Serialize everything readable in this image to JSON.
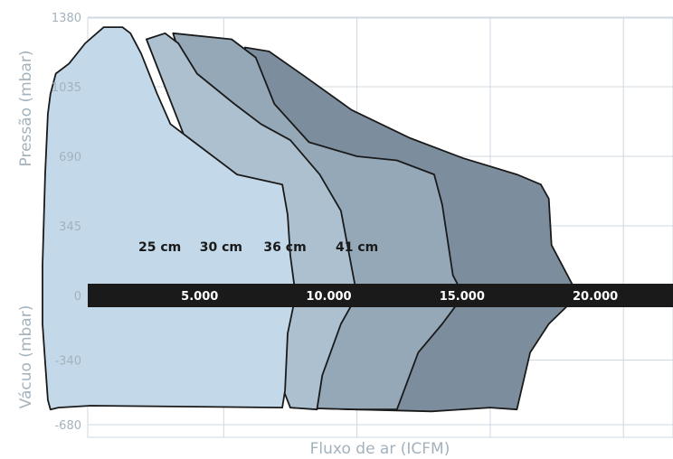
{
  "chart_data": {
    "type": "area",
    "xlabel": "Fluxo de ar (ICFM)",
    "ylabel_top": "Pressão  (mbar)",
    "ylabel_bottom": "Vácuo (mbar)",
    "x_ticks": [
      {
        "value": 5000,
        "label": "5.000"
      },
      {
        "value": 10000,
        "label": "10.000"
      },
      {
        "value": 15000,
        "label": "15.000"
      },
      {
        "value": 20000,
        "label": "20.000"
      }
    ],
    "y_ticks": [
      {
        "value": 1380,
        "label": "1380"
      },
      {
        "value": 1035,
        "label": "1035"
      },
      {
        "value": 690,
        "label": "690"
      },
      {
        "value": 345,
        "label": "345"
      },
      {
        "value": 0,
        "label": "0"
      },
      {
        "value": -340,
        "label": "-340"
      },
      {
        "value": -680,
        "label": "-680"
      }
    ],
    "xlim": [
      0,
      22000
    ],
    "ylim": [
      -680,
      1380
    ],
    "grid": true,
    "series": [
      {
        "name": "41 cm",
        "color": "#7c8e9d",
        "label_at": [
          10000,
          220
        ],
        "boundary": [
          [
            5800,
            1230
          ],
          [
            6700,
            1210
          ],
          [
            8000,
            1090
          ],
          [
            9800,
            920
          ],
          [
            12000,
            780
          ],
          [
            14000,
            680
          ],
          [
            16000,
            600
          ],
          [
            16900,
            550
          ],
          [
            17200,
            480
          ],
          [
            17300,
            250
          ],
          [
            18300,
            0
          ],
          [
            17200,
            -150
          ],
          [
            16500,
            -300
          ],
          [
            16000,
            -600
          ],
          [
            15000,
            -590
          ],
          [
            12800,
            -610
          ],
          [
            10000,
            -600
          ],
          [
            7500,
            -590
          ]
        ]
      },
      {
        "name": "36 cm",
        "color": "#94a8b8",
        "label_at": [
          7300,
          220
        ],
        "boundary": [
          [
            3100,
            1300
          ],
          [
            5300,
            1270
          ],
          [
            6200,
            1180
          ],
          [
            6900,
            950
          ],
          [
            8200,
            760
          ],
          [
            10000,
            690
          ],
          [
            11500,
            670
          ],
          [
            12900,
            600
          ],
          [
            13200,
            450
          ],
          [
            13600,
            100
          ],
          [
            14000,
            0
          ],
          [
            13200,
            -150
          ],
          [
            12300,
            -300
          ],
          [
            11500,
            -600
          ],
          [
            10000,
            -600
          ],
          [
            7500,
            -590
          ]
        ]
      },
      {
        "name": "30 cm",
        "color": "#acc0cf",
        "label_at": [
          4900,
          220
        ],
        "boundary": [
          [
            2100,
            1270
          ],
          [
            2800,
            1300
          ],
          [
            3300,
            1250
          ],
          [
            4000,
            1100
          ],
          [
            5400,
            950
          ],
          [
            6400,
            850
          ],
          [
            7500,
            770
          ],
          [
            8600,
            600
          ],
          [
            9400,
            420
          ],
          [
            10000,
            0
          ],
          [
            9400,
            -150
          ],
          [
            8700,
            -420
          ],
          [
            8500,
            -600
          ],
          [
            7500,
            -590
          ]
        ]
      },
      {
        "name": "25 cm",
        "color": "#c3d9e9",
        "label_at": [
          2600,
          220
        ],
        "boundary": [
          [
            -1500,
            1000
          ],
          [
            -1300,
            1100
          ],
          [
            -800,
            1150
          ],
          [
            -200,
            1250
          ],
          [
            500,
            1330
          ],
          [
            1200,
            1330
          ],
          [
            1500,
            1300
          ],
          [
            1900,
            1200
          ],
          [
            2500,
            1000
          ],
          [
            3000,
            850
          ],
          [
            4000,
            750
          ],
          [
            5500,
            600
          ],
          [
            7200,
            550
          ],
          [
            7400,
            400
          ],
          [
            7500,
            200
          ],
          [
            7700,
            0
          ],
          [
            7400,
            -200
          ],
          [
            7300,
            -500
          ],
          [
            7200,
            -590
          ],
          [
            0,
            -580
          ],
          [
            -1200,
            -590
          ],
          [
            -1500,
            -600
          ],
          [
            -1600,
            -550
          ],
          [
            -1700,
            -350
          ],
          [
            -1800,
            -150
          ],
          [
            -1800,
            150
          ],
          [
            -1700,
            600
          ],
          [
            -1600,
            900
          ]
        ]
      }
    ]
  }
}
